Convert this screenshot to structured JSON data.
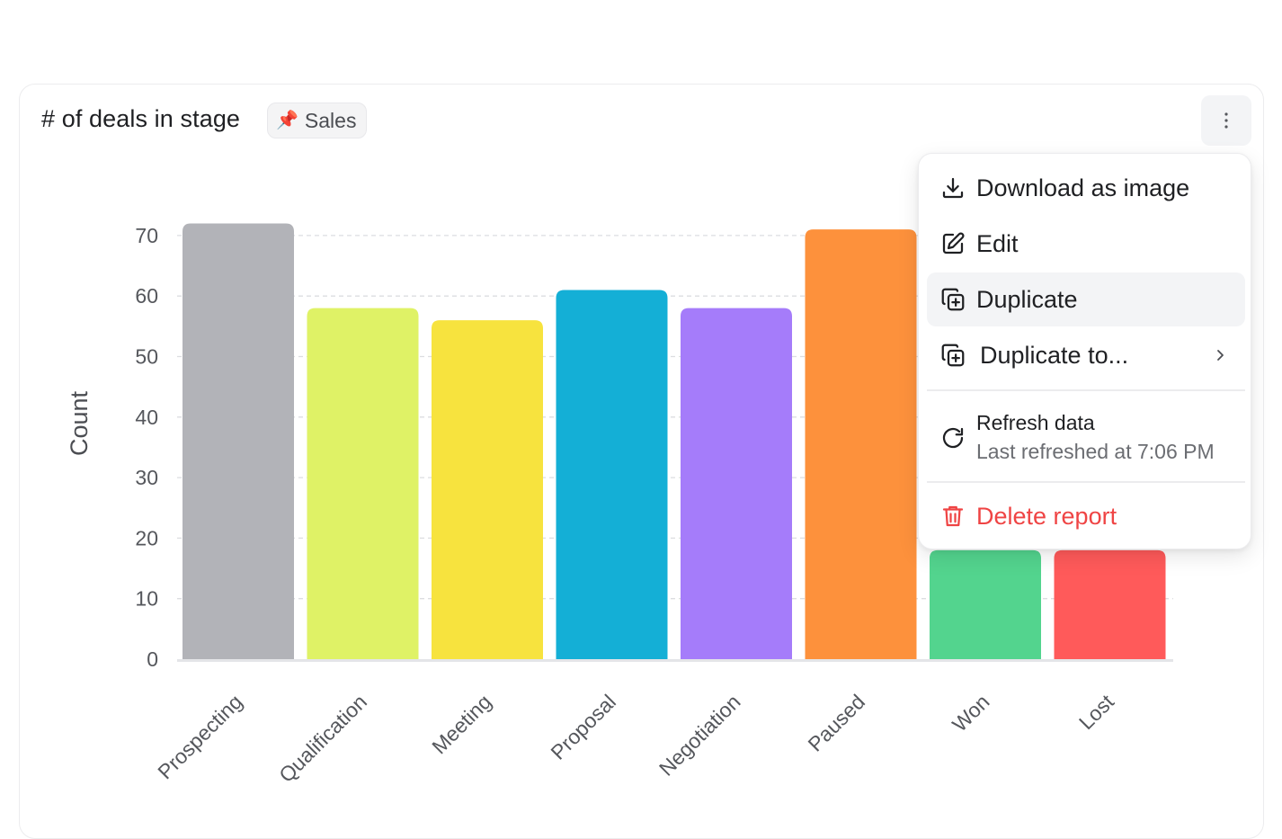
{
  "card": {
    "title": "# of deals in stage",
    "tag": {
      "icon": "pin-icon",
      "label": "Sales"
    },
    "more_icon": "vertical-dots-icon"
  },
  "chart_data": {
    "type": "bar",
    "categories": [
      "Prospecting",
      "Qualification",
      "Meeting",
      "Proposal",
      "Negotiation",
      "Paused",
      "Won",
      "Lost"
    ],
    "values": [
      72,
      58,
      56,
      61,
      58,
      71,
      18,
      18
    ],
    "colors": [
      "#b2b3b8",
      "#dff266",
      "#f7e33e",
      "#14afd6",
      "#a57cfa",
      "#fd913c",
      "#53d48e",
      "#ff5a5a"
    ],
    "title": "",
    "xlabel": "",
    "ylabel": "Count",
    "yticks": [
      0,
      10,
      20,
      30,
      40,
      50,
      60,
      70
    ],
    "ylim": [
      0,
      70
    ],
    "grid": true
  },
  "menu": {
    "download": {
      "icon": "download-icon",
      "label": "Download as image"
    },
    "edit": {
      "icon": "edit-icon",
      "label": "Edit"
    },
    "duplicate": {
      "icon": "duplicate-icon",
      "label": "Duplicate"
    },
    "duplicate_to": {
      "icon": "duplicate-icon",
      "label": "Duplicate to...",
      "chevron": "chevron-right-icon"
    },
    "refresh": {
      "icon": "refresh-icon",
      "label": "Refresh data",
      "sublabel": "Last refreshed at 7:06 PM"
    },
    "delete": {
      "icon": "trash-icon",
      "label": "Delete report",
      "color": "#ef4444"
    }
  }
}
